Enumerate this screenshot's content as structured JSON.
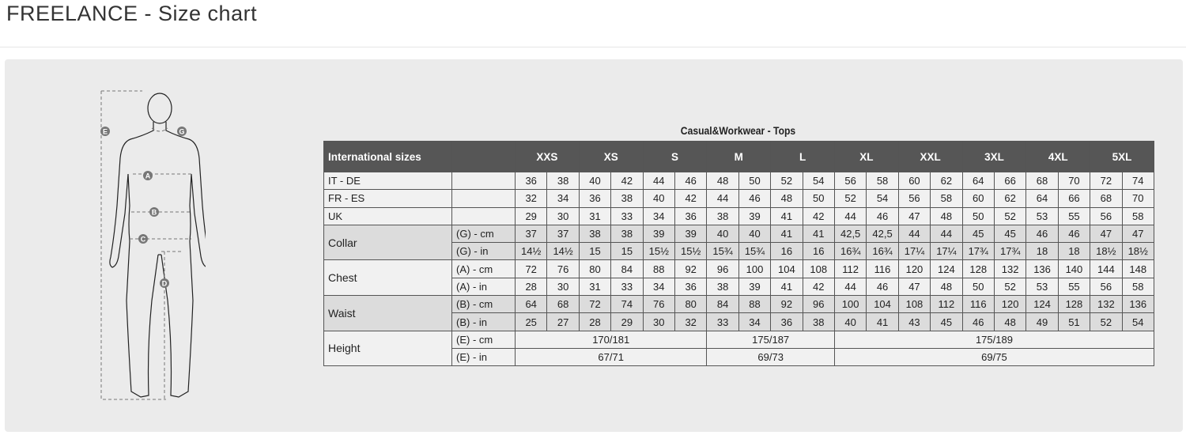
{
  "page_title": "FREELANCE - Size chart",
  "figure": {
    "labels": [
      "E",
      "G",
      "A",
      "B",
      "C",
      "D"
    ]
  },
  "table": {
    "caption": "Casual&Workwear - Tops",
    "header_label": "International sizes",
    "sizes": [
      "XXS",
      "XS",
      "S",
      "M",
      "L",
      "XL",
      "XXL",
      "3XL",
      "4XL",
      "5XL"
    ],
    "rows": [
      {
        "label": "IT - DE",
        "sub": "",
        "values": [
          "36",
          "38",
          "40",
          "42",
          "44",
          "46",
          "48",
          "50",
          "52",
          "54",
          "56",
          "58",
          "60",
          "62",
          "64",
          "66",
          "68",
          "70",
          "72",
          "74"
        ]
      },
      {
        "label": "FR - ES",
        "sub": "",
        "values": [
          "32",
          "34",
          "36",
          "38",
          "40",
          "42",
          "44",
          "46",
          "48",
          "50",
          "52",
          "54",
          "56",
          "58",
          "60",
          "62",
          "64",
          "66",
          "68",
          "70"
        ]
      },
      {
        "label": "UK",
        "sub": "",
        "values": [
          "29",
          "30",
          "31",
          "33",
          "34",
          "36",
          "38",
          "39",
          "41",
          "42",
          "44",
          "46",
          "47",
          "48",
          "50",
          "52",
          "53",
          "55",
          "56",
          "58"
        ]
      }
    ],
    "groups": [
      {
        "label": "Collar",
        "shade": "dark",
        "rows": [
          {
            "sub": "(G) - cm",
            "values": [
              "37",
              "37",
              "38",
              "38",
              "39",
              "39",
              "40",
              "40",
              "41",
              "41",
              "42,5",
              "42,5",
              "44",
              "44",
              "45",
              "45",
              "46",
              "46",
              "47",
              "47"
            ]
          },
          {
            "sub": "(G)  - in",
            "values": [
              "14½",
              "14½",
              "15",
              "15",
              "15½",
              "15½",
              "15¾",
              "15¾",
              "16",
              "16",
              "16¾",
              "16¾",
              "17¼",
              "17¼",
              "17¾",
              "17¾",
              "18",
              "18",
              "18½",
              "18½"
            ]
          }
        ]
      },
      {
        "label": "Chest",
        "shade": "light",
        "rows": [
          {
            "sub": "(A) - cm",
            "values": [
              "72",
              "76",
              "80",
              "84",
              "88",
              "92",
              "96",
              "100",
              "104",
              "108",
              "112",
              "116",
              "120",
              "124",
              "128",
              "132",
              "136",
              "140",
              "144",
              "148"
            ]
          },
          {
            "sub": "(A) - in",
            "values": [
              "28",
              "30",
              "31",
              "33",
              "34",
              "36",
              "38",
              "39",
              "41",
              "42",
              "44",
              "46",
              "47",
              "48",
              "50",
              "52",
              "53",
              "55",
              "56",
              "58"
            ]
          }
        ]
      },
      {
        "label": "Waist",
        "shade": "dark",
        "rows": [
          {
            "sub": "(B) - cm",
            "values": [
              "64",
              "68",
              "72",
              "74",
              "76",
              "80",
              "84",
              "88",
              "92",
              "96",
              "100",
              "104",
              "108",
              "112",
              "116",
              "120",
              "124",
              "128",
              "132",
              "136"
            ]
          },
          {
            "sub": "(B) - in",
            "values": [
              "25",
              "27",
              "28",
              "29",
              "30",
              "32",
              "33",
              "34",
              "36",
              "38",
              "40",
              "41",
              "43",
              "45",
              "46",
              "48",
              "49",
              "51",
              "52",
              "54"
            ]
          }
        ]
      }
    ],
    "height": {
      "label": "Height",
      "rows": [
        {
          "sub": "(E) - cm",
          "spans": [
            {
              "cols": 6,
              "value": "170/181"
            },
            {
              "cols": 4,
              "value": "175/187"
            },
            {
              "cols": 10,
              "value": "175/189"
            }
          ]
        },
        {
          "sub": "(E) - in",
          "spans": [
            {
              "cols": 6,
              "value": "67/71"
            },
            {
              "cols": 4,
              "value": "69/73"
            },
            {
              "cols": 10,
              "value": "69/75"
            }
          ]
        }
      ]
    }
  }
}
